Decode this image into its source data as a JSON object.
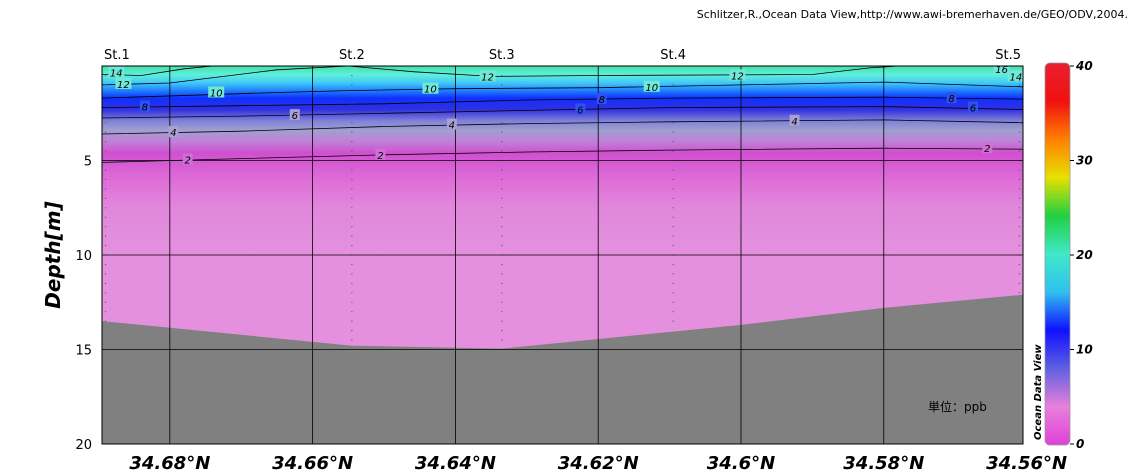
{
  "credit": "Schlitzer,R.,Ocean Data View,http://www.awi-bremerhaven.de/GEO/ODV,2004.",
  "unit_label": "単位：ppb",
  "watermark": "Ocean Data View",
  "chart_data": {
    "type": "heatmap",
    "subtype": "ocean-section-contour",
    "ylabel": "Depth[m]",
    "xlabel": "",
    "x_axis_reversed": true,
    "xlim": [
      34.6895,
      34.5605
    ],
    "ylim": [
      0,
      20
    ],
    "y_inverted": true,
    "grid": true,
    "xticks": [
      {
        "value": 34.68,
        "label": "34.68°N"
      },
      {
        "value": 34.66,
        "label": "34.66°N"
      },
      {
        "value": 34.64,
        "label": "34.64°N"
      },
      {
        "value": 34.62,
        "label": "34.62°N"
      },
      {
        "value": 34.6,
        "label": "34.6°N"
      },
      {
        "value": 34.58,
        "label": "34.58°N"
      },
      {
        "value": 34.56,
        "label": "34.56°N"
      }
    ],
    "yticks": [
      {
        "value": 5,
        "label": "5"
      },
      {
        "value": 10,
        "label": "10"
      },
      {
        "value": 15,
        "label": "15"
      },
      {
        "value": 20,
        "label": "20"
      }
    ],
    "stations": [
      {
        "name": "St.1",
        "lat": 34.689,
        "bottom_depth": 13.6
      },
      {
        "name": "St.2",
        "lat": 34.6545,
        "bottom_depth": 14.7
      },
      {
        "name": "St.3",
        "lat": 34.6335,
        "bottom_depth": 14.9
      },
      {
        "name": "St.4",
        "lat": 34.6095,
        "bottom_depth": 14.0
      },
      {
        "name": "St.5",
        "lat": 34.561,
        "bottom_depth": 12.1
      }
    ],
    "seafloor": [
      {
        "lat": 34.6895,
        "depth": 13.5
      },
      {
        "lat": 34.6545,
        "depth": 14.8
      },
      {
        "lat": 34.6335,
        "depth": 14.95
      },
      {
        "lat": 34.6,
        "depth": 13.7
      },
      {
        "lat": 34.58,
        "depth": 12.8
      },
      {
        "lat": 34.5605,
        "depth": 12.1
      }
    ],
    "contours": [
      {
        "level": 14,
        "points": [
          [
            34.6895,
            0.45
          ],
          [
            34.684,
            0.5
          ],
          [
            34.678,
            0.15
          ],
          [
            34.674,
            0.0
          ]
        ]
      },
      {
        "level": 12,
        "points": [
          [
            34.6895,
            1.0
          ],
          [
            34.68,
            0.9
          ],
          [
            34.665,
            0.2
          ],
          [
            34.655,
            0.0
          ],
          [
            34.646,
            0.3
          ],
          [
            34.635,
            0.55
          ],
          [
            34.62,
            0.5
          ],
          [
            34.59,
            0.45
          ],
          [
            34.582,
            0.1
          ],
          [
            34.578,
            0.0
          ]
        ]
      },
      {
        "level": 10,
        "points": [
          [
            34.6895,
            1.7
          ],
          [
            34.665,
            1.4
          ],
          [
            34.655,
            1.3
          ],
          [
            34.64,
            1.2
          ],
          [
            34.62,
            1.15
          ],
          [
            34.6,
            1.0
          ],
          [
            34.58,
            0.85
          ],
          [
            34.5605,
            1.1
          ]
        ]
      },
      {
        "level": 8,
        "points": [
          [
            34.6895,
            2.2
          ],
          [
            34.67,
            2.1
          ],
          [
            34.65,
            2.0
          ],
          [
            34.63,
            1.8
          ],
          [
            34.61,
            1.7
          ],
          [
            34.58,
            1.65
          ],
          [
            34.5605,
            1.75
          ]
        ]
      },
      {
        "level": 6,
        "points": [
          [
            34.6895,
            2.75
          ],
          [
            34.67,
            2.65
          ],
          [
            34.65,
            2.5
          ],
          [
            34.63,
            2.35
          ],
          [
            34.61,
            2.2
          ],
          [
            34.58,
            2.15
          ],
          [
            34.5605,
            2.3
          ]
        ]
      },
      {
        "level": 4,
        "points": [
          [
            34.6895,
            3.6
          ],
          [
            34.67,
            3.45
          ],
          [
            34.65,
            3.2
          ],
          [
            34.63,
            3.05
          ],
          [
            34.61,
            2.95
          ],
          [
            34.58,
            2.85
          ],
          [
            34.5605,
            3.0
          ]
        ]
      },
      {
        "level": 2,
        "points": [
          [
            34.6895,
            5.1
          ],
          [
            34.67,
            4.9
          ],
          [
            34.65,
            4.7
          ],
          [
            34.63,
            4.55
          ],
          [
            34.61,
            4.45
          ],
          [
            34.58,
            4.35
          ],
          [
            34.5605,
            4.4
          ]
        ]
      }
    ],
    "contour_labels": [
      {
        "level": 14,
        "label": "14",
        "lat": 34.6875,
        "depth": 0.35
      },
      {
        "level": 12,
        "label": "12",
        "lat": 34.6865,
        "depth": 0.95
      },
      {
        "level": 12,
        "label": "12",
        "lat": 34.6355,
        "depth": 0.55
      },
      {
        "level": 12,
        "label": "12",
        "lat": 34.6005,
        "depth": 0.5
      },
      {
        "level": 10,
        "label": "10",
        "lat": 34.6735,
        "depth": 1.4
      },
      {
        "level": 10,
        "label": "10",
        "lat": 34.6435,
        "depth": 1.2
      },
      {
        "level": 10,
        "label": "10",
        "lat": 34.6125,
        "depth": 1.1
      },
      {
        "level": 8,
        "label": "8",
        "lat": 34.6835,
        "depth": 2.15
      },
      {
        "level": 8,
        "label": "8",
        "lat": 34.6195,
        "depth": 1.75
      },
      {
        "level": 8,
        "label": "8",
        "lat": 34.5705,
        "depth": 1.7
      },
      {
        "level": 6,
        "label": "6",
        "lat": 34.6625,
        "depth": 2.6
      },
      {
        "level": 6,
        "label": "6",
        "lat": 34.6225,
        "depth": 2.3
      },
      {
        "level": 6,
        "label": "6",
        "lat": 34.5675,
        "depth": 2.2
      },
      {
        "level": 4,
        "label": "4",
        "lat": 34.6795,
        "depth": 3.5
      },
      {
        "level": 4,
        "label": "4",
        "lat": 34.6405,
        "depth": 3.1
      },
      {
        "level": 4,
        "label": "4",
        "lat": 34.5925,
        "depth": 2.9
      },
      {
        "level": 2,
        "label": "2",
        "lat": 34.6775,
        "depth": 4.95
      },
      {
        "level": 2,
        "label": "2",
        "lat": 34.6505,
        "depth": 4.7
      },
      {
        "level": 2,
        "label": "2",
        "lat": 34.5655,
        "depth": 4.35
      },
      {
        "level": 16,
        "label": "16",
        "lat": 34.5635,
        "depth": 0.15
      },
      {
        "level": 14,
        "label": "14",
        "lat": 34.5615,
        "depth": 0.55
      }
    ],
    "colorbar": {
      "min": 0,
      "max": 40,
      "ticks": [
        {
          "value": 0,
          "label": "0"
        },
        {
          "value": 10,
          "label": "10"
        },
        {
          "value": 20,
          "label": "20"
        },
        {
          "value": 30,
          "label": "30"
        },
        {
          "value": 40,
          "label": "40"
        }
      ],
      "colors": [
        "#e040d8",
        "#e880dc",
        "#6060e0",
        "#1010ff",
        "#30c0f0",
        "#40e8c8",
        "#20d040",
        "#e8e000",
        "#ff8000",
        "#f01010",
        "#e82030"
      ]
    },
    "colors": {
      "seafloor": "#808080",
      "frame": "#000000"
    }
  }
}
